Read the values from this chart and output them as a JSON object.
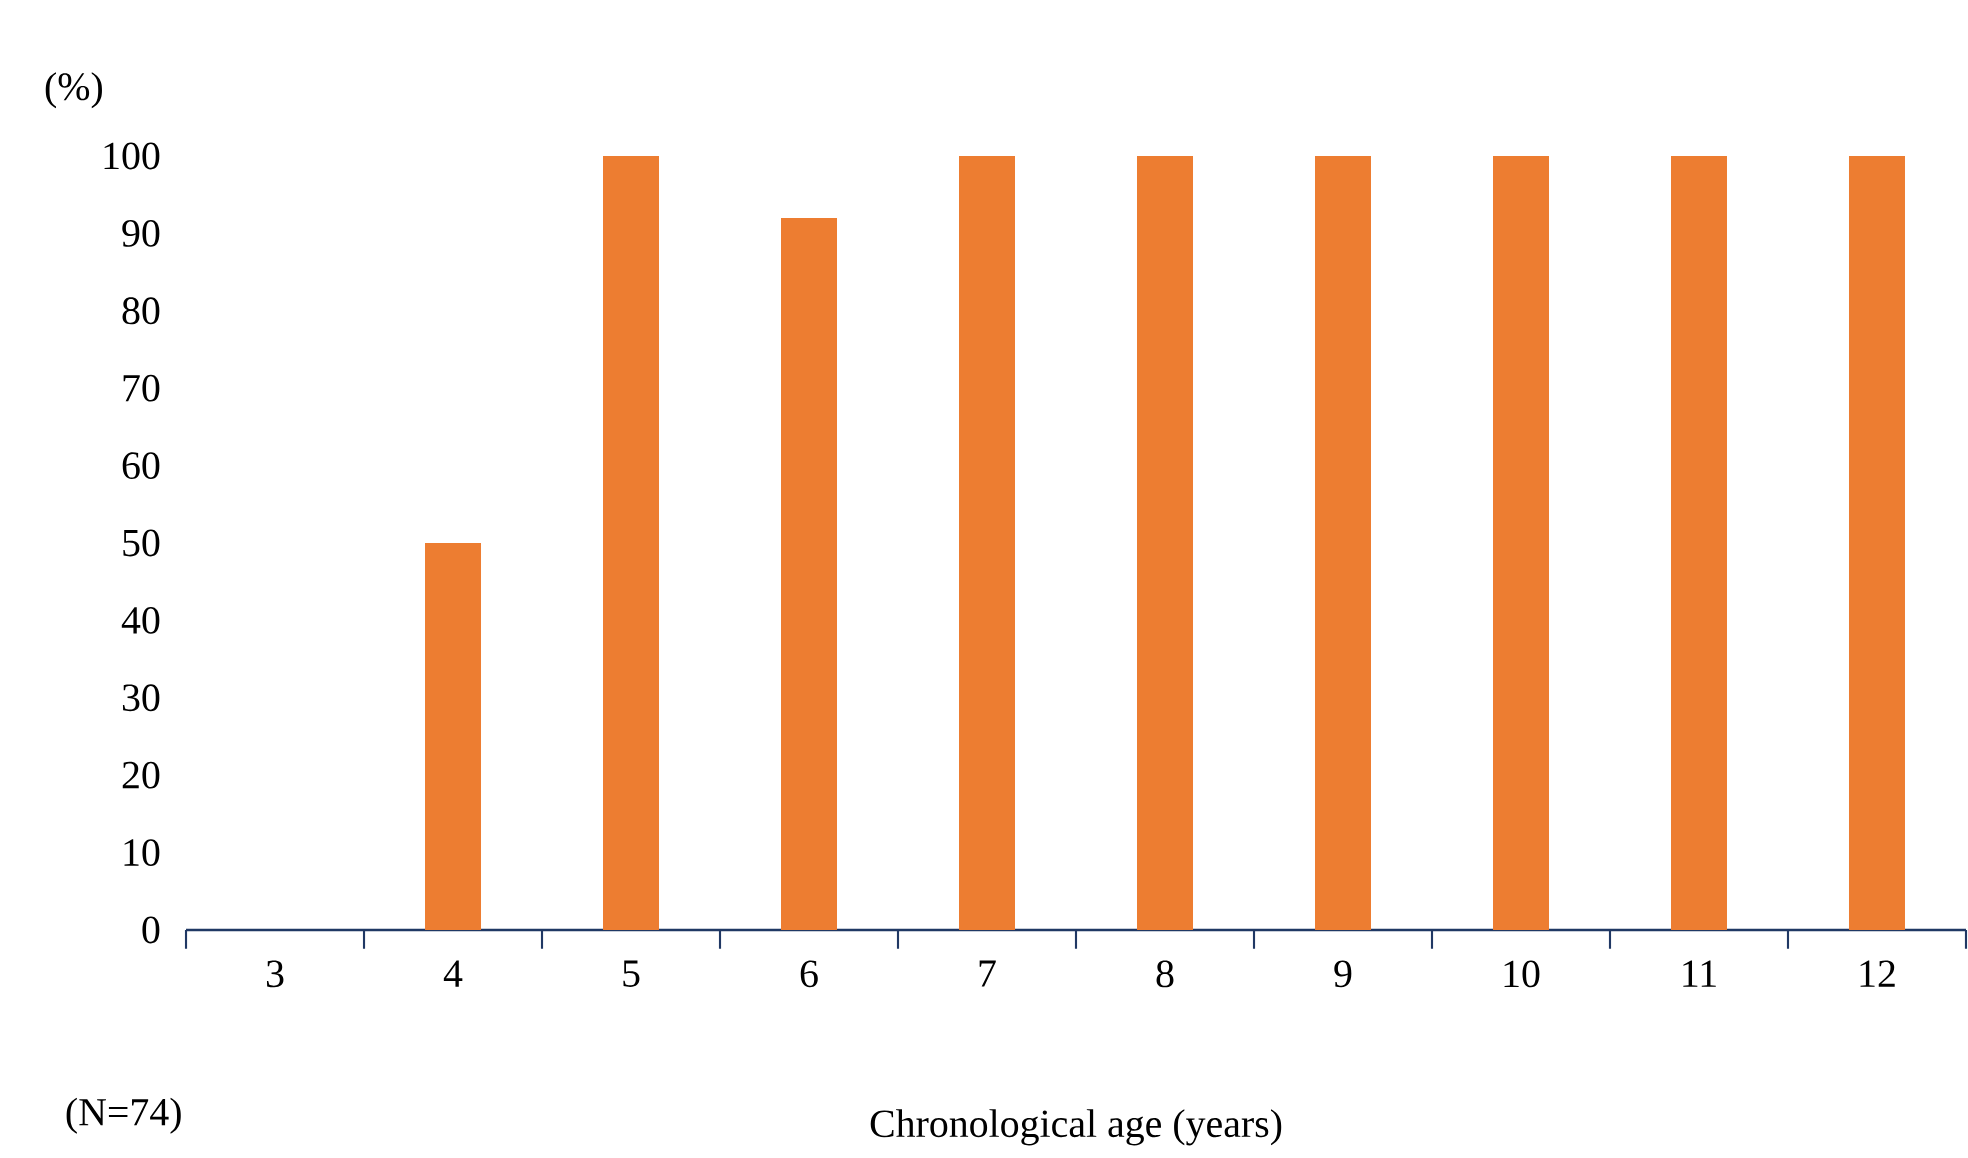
{
  "chart_data": {
    "type": "bar",
    "categories": [
      "3",
      "4",
      "5",
      "6",
      "7",
      "8",
      "9",
      "10",
      "11",
      "12"
    ],
    "values": [
      0,
      50,
      100,
      92,
      100,
      100,
      100,
      100,
      100,
      100
    ],
    "color": "#ed7d31",
    "xlabel": "Chronological age (years)",
    "ylabel": "(%)",
    "ylim": [
      0,
      100
    ],
    "yticks": [
      0,
      10,
      20,
      30,
      40,
      50,
      60,
      70,
      80,
      90,
      100
    ],
    "annotations": [
      "(N=74)"
    ]
  }
}
